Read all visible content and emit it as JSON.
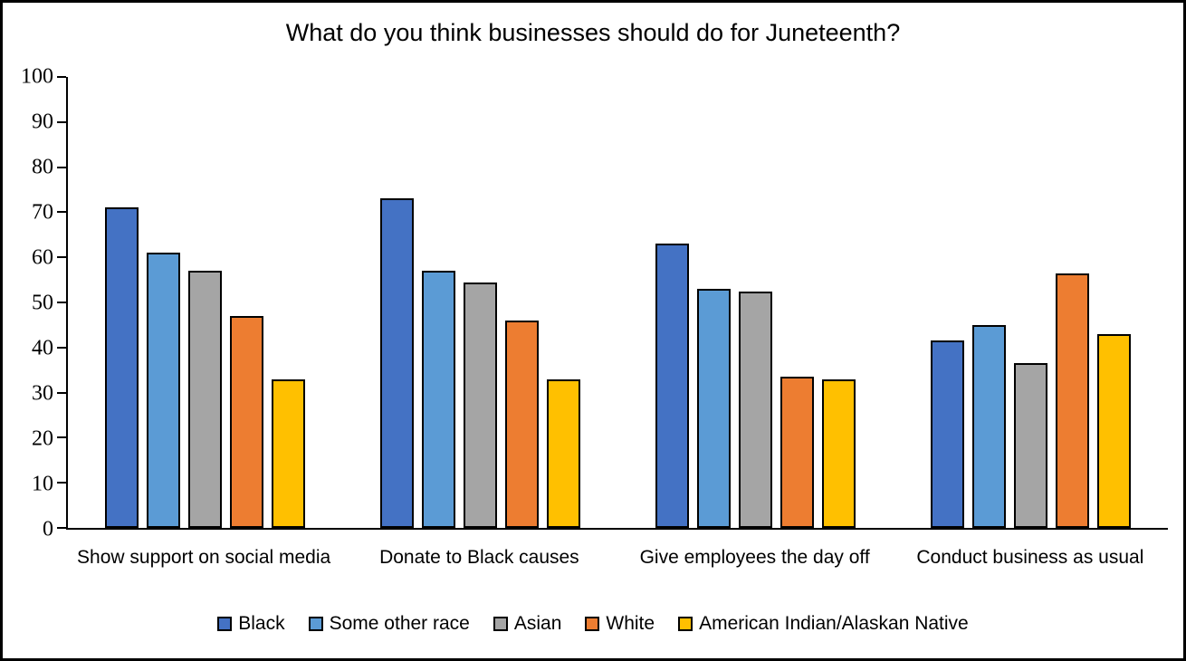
{
  "chart_data": {
    "type": "bar",
    "title": "What do you think businesses should do for Juneteenth?",
    "categories": [
      "Show support on social media",
      "Donate to Black causes",
      "Give employees the day off",
      "Conduct business as usual"
    ],
    "series": [
      {
        "name": "Black",
        "color": "#4472C4",
        "values": [
          71,
          73,
          63,
          41.5
        ]
      },
      {
        "name": "Some other race",
        "color": "#5B9BD5",
        "values": [
          61,
          57,
          53,
          45
        ]
      },
      {
        "name": "Asian",
        "color": "#A5A5A5",
        "values": [
          57,
          54.5,
          52.5,
          36.5
        ]
      },
      {
        "name": "White",
        "color": "#ED7D31",
        "values": [
          47,
          46,
          33.5,
          56.5
        ]
      },
      {
        "name": "American Indian/Alaskan Native",
        "color": "#FFC000",
        "values": [
          33,
          33,
          33,
          43
        ]
      }
    ],
    "xlabel": "",
    "ylabel": "",
    "ylim": [
      0,
      100
    ],
    "yticks": [
      0,
      10,
      20,
      30,
      40,
      50,
      60,
      70,
      80,
      90,
      100
    ],
    "grid": false,
    "legend_position": "bottom",
    "bar_border_color": "#000000",
    "background_color": "#FFFFFF"
  }
}
